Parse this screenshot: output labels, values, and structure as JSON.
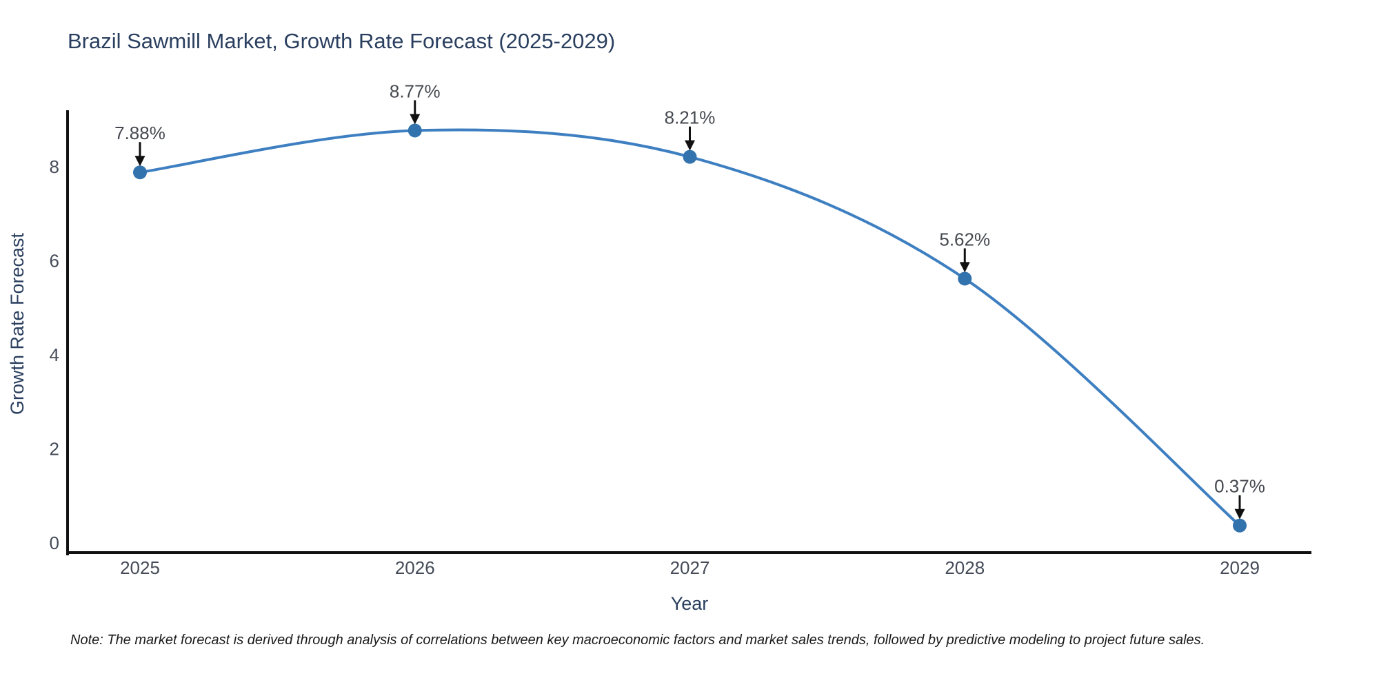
{
  "page": {
    "background": "#ffffff"
  },
  "chart_data": {
    "type": "line",
    "title": "Brazil Sawmill Market, Growth Rate Forecast (2025-2029)",
    "xlabel": "Year",
    "ylabel": "Growth Rate Forecast",
    "x": [
      2025,
      2026,
      2027,
      2028,
      2029
    ],
    "values": [
      7.88,
      8.77,
      8.21,
      5.62,
      0.37
    ],
    "point_labels": [
      "7.88%",
      "8.77%",
      "8.21%",
      "5.62%",
      "0.37%"
    ],
    "xtick_labels": [
      "2025",
      "2026",
      "2027",
      "2028",
      "2029"
    ],
    "ytick_values": [
      0,
      2,
      4,
      6,
      8
    ],
    "ytick_labels": [
      "0",
      "2",
      "4",
      "6",
      "8"
    ],
    "ylim": [
      -0.2,
      9.2
    ],
    "xlim": [
      2024.74,
      2029.26
    ],
    "grid": false,
    "legend_position": "none",
    "line_shape": "spline",
    "colors": {
      "line": "#3d7fc1",
      "marker": "#3273ae",
      "arrow": "#111111",
      "spine": "#111111",
      "title": "#2a3f5f",
      "axis_label": "#2a3f5f",
      "tick": "#444b57",
      "annotation": "#44484f",
      "note": "#1a1a1a"
    }
  },
  "note": {
    "text": "Note: The market forecast is derived through analysis of correlations between key macroeconomic factors and market sales trends, followed by predictive modeling to project future sales."
  }
}
